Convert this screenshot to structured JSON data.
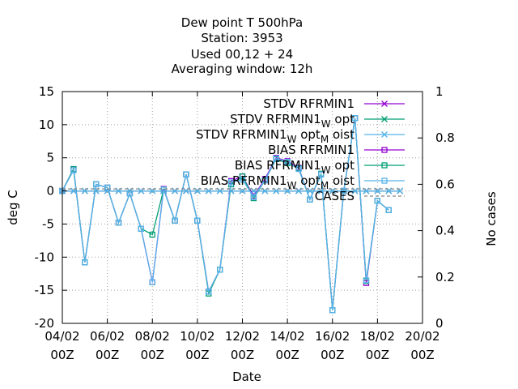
{
  "chart_data": {
    "type": "line",
    "title": [
      "Dew point T 500hPa",
      "Station:     3953",
      "Used  00,12  + 24",
      "Averaging window: 12h"
    ],
    "xlabel": "Date",
    "ylabel": "deg C",
    "y2label": "No cases",
    "x_range": [
      0,
      16
    ],
    "x_unit": "days from 04/02 00Z",
    "x_ticks": [
      {
        "at": 0,
        "line1": "04/02",
        "line2": "00Z"
      },
      {
        "at": 2,
        "line1": "06/02",
        "line2": "00Z"
      },
      {
        "at": 4,
        "line1": "08/02",
        "line2": "00Z"
      },
      {
        "at": 6,
        "line1": "10/02",
        "line2": "00Z"
      },
      {
        "at": 8,
        "line1": "12/02",
        "line2": "00Z"
      },
      {
        "at": 10,
        "line1": "14/02",
        "line2": "00Z"
      },
      {
        "at": 12,
        "line1": "16/02",
        "line2": "00Z"
      },
      {
        "at": 14,
        "line1": "18/02",
        "line2": "00Z"
      },
      {
        "at": 16,
        "line1": "20/02",
        "line2": "00Z"
      }
    ],
    "ylim": [
      -20,
      15
    ],
    "y_ticks": [
      -20,
      -15,
      -10,
      -5,
      0,
      5,
      10,
      15
    ],
    "y2lim": [
      0,
      1
    ],
    "y2_ticks": [
      "0",
      "0.2",
      "0.4",
      "0.6",
      "0.8",
      "1"
    ],
    "grid": true,
    "legend_position": "top-right",
    "x": [
      0,
      0.5,
      1,
      1.5,
      2,
      2.5,
      3,
      3.5,
      4,
      4.5,
      5,
      5.5,
      6,
      6.5,
      7,
      7.5,
      8,
      8.5,
      9,
      9.5,
      10,
      10.5,
      11,
      11.5,
      12,
      12.5,
      13,
      13.5,
      14,
      14.5,
      15
    ],
    "series": [
      {
        "name": "STDV RFRMIN1",
        "color": "#9400d3",
        "marker": "x",
        "values": [
          0,
          0,
          0,
          0,
          0,
          0,
          0,
          0,
          0,
          0,
          0,
          0,
          0,
          0,
          0,
          0,
          0,
          0,
          0,
          0,
          0,
          0,
          0,
          0,
          0,
          0,
          0,
          0,
          0,
          0,
          0
        ]
      },
      {
        "name": "STDV RFRMIN1_W opt",
        "color": "#009e73",
        "marker": "x",
        "values": [
          0,
          0,
          0,
          0,
          0,
          0,
          0,
          0,
          0,
          0,
          0,
          0,
          0,
          0,
          0,
          0,
          0,
          0,
          0,
          0,
          0,
          0,
          0,
          0,
          0,
          0,
          0,
          0,
          0,
          0,
          0
        ]
      },
      {
        "name": "STDV RFRMIN1_W opt_M oist",
        "color": "#56b4e9",
        "marker": "x",
        "values": [
          0,
          0,
          0,
          0,
          0,
          0,
          0,
          0,
          0,
          0,
          0,
          0,
          0,
          0,
          0,
          0,
          0,
          0,
          0,
          0,
          0,
          0,
          0,
          0,
          0,
          0,
          0,
          0,
          0,
          0,
          0
        ]
      },
      {
        "name": "BIAS RFRMIN1",
        "color": "#9400d3",
        "marker": "square",
        "values": [
          0,
          3.3,
          -10.8,
          1.0,
          0.5,
          -4.8,
          -0.4,
          -5.7,
          -13.8,
          0.3,
          -4.5,
          2.5,
          -4.5,
          -15.2,
          -11.9,
          1.5,
          2.2,
          -0.8,
          1.8,
          5.0,
          4.5,
          3.5,
          -1.3,
          2.5,
          -18.0,
          0,
          11.0,
          -13.9,
          -1.5,
          -2.9,
          null
        ]
      },
      {
        "name": "BIAS RFRMIN1_W opt",
        "color": "#009e73",
        "marker": "square",
        "values": [
          0,
          3.3,
          -10.8,
          1.0,
          0.5,
          -4.8,
          -0.4,
          -5.7,
          -6.6,
          0.2,
          -4.5,
          2.5,
          -4.5,
          -15.5,
          -11.9,
          1.0,
          2.2,
          -1.1,
          1.6,
          4.8,
          4.2,
          3.4,
          -1.3,
          2.6,
          -18.0,
          0,
          11.0,
          -13.6,
          -1.5,
          -2.9,
          null
        ]
      },
      {
        "name": "BIAS RFRMIN1_W opt_M oist",
        "color": "#56b4e9",
        "marker": "square",
        "values": [
          0,
          3.1,
          -10.8,
          1.0,
          0.5,
          -4.8,
          -0.4,
          -5.7,
          -13.8,
          0.2,
          -4.5,
          2.5,
          -4.5,
          -15.2,
          -11.9,
          1.3,
          1.7,
          -0.9,
          1.6,
          4.9,
          4.4,
          3.3,
          -1.3,
          2.5,
          -18.0,
          0,
          11.0,
          -13.5,
          -1.5,
          -2.9,
          null
        ]
      },
      {
        "name": "CASES",
        "color": "#888888",
        "dash": true,
        "axis": "y2",
        "values": [
          0.58,
          0.58,
          0.58,
          0.58,
          0.58,
          0.58,
          0.58,
          0.58,
          0.58,
          0.58,
          0.58,
          0.58,
          0.58,
          0.58,
          0.58,
          0.58,
          0.58,
          0.58,
          0.58,
          0.58,
          0.58,
          0.58,
          0.58,
          0.58,
          0.58,
          0.58,
          0.58,
          0.58,
          0.58,
          0.58,
          0.58
        ]
      }
    ]
  }
}
